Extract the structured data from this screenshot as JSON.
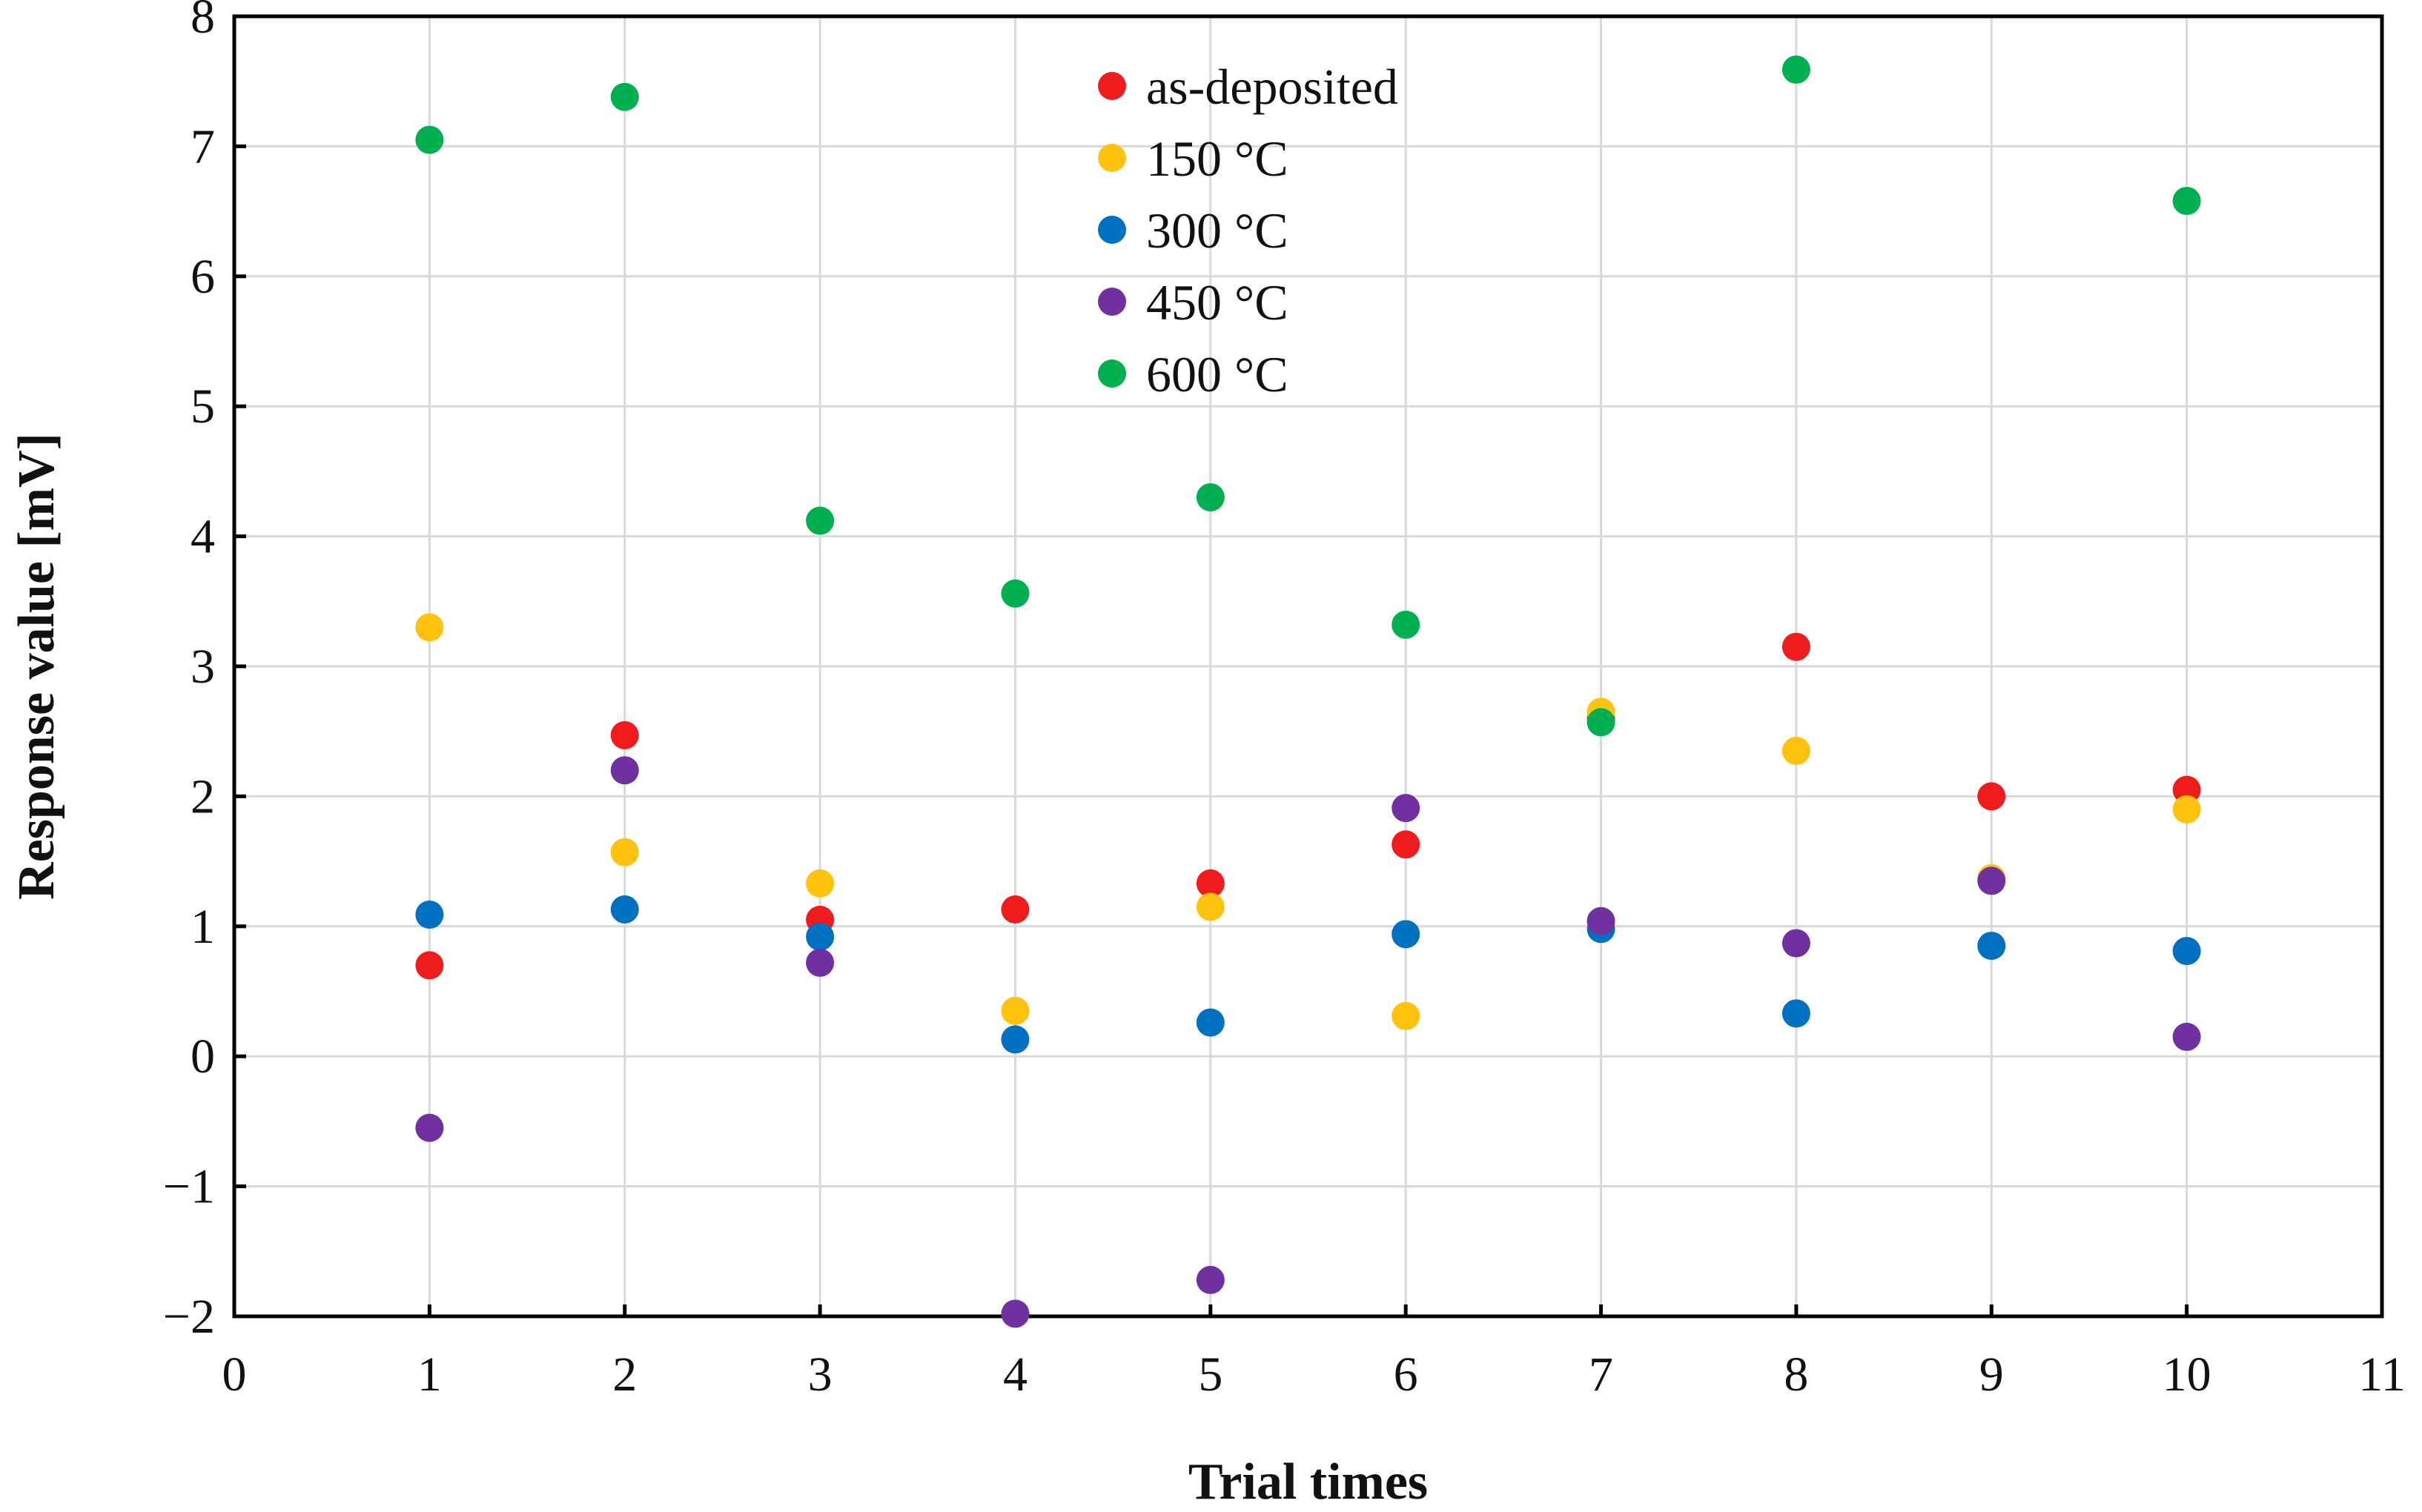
{
  "chart_data": {
    "type": "scatter",
    "title": "",
    "xlabel": "Trial times",
    "ylabel": "Response value [mV]",
    "xlim": [
      0,
      11
    ],
    "ylim": [
      -2,
      8
    ],
    "x_ticks": [
      0,
      1,
      2,
      3,
      4,
      5,
      6,
      7,
      8,
      9,
      10,
      11
    ],
    "y_ticks": [
      -2,
      -1,
      0,
      1,
      2,
      3,
      4,
      5,
      6,
      7,
      8
    ],
    "x_tick_labels": [
      "0",
      "1",
      "2",
      "3",
      "4",
      "5",
      "6",
      "7",
      "8",
      "9",
      "10",
      "11"
    ],
    "y_tick_labels": [
      "−2",
      "−1",
      "0",
      "1",
      "2",
      "3",
      "4",
      "5",
      "6",
      "7",
      "8"
    ],
    "grid": true,
    "legend_position": "top-center",
    "x": [
      1,
      2,
      3,
      4,
      5,
      6,
      7,
      8,
      9,
      10
    ],
    "series": [
      {
        "name": "as-deposited",
        "color": "#ee1c1c",
        "values": [
          0.7,
          2.47,
          1.05,
          1.13,
          1.33,
          1.63,
          2.6,
          3.15,
          2.0,
          2.05
        ]
      },
      {
        "name": "150 °C",
        "color": "#ffc20e",
        "values": [
          3.3,
          1.57,
          1.33,
          0.35,
          1.15,
          0.31,
          2.65,
          2.35,
          1.37,
          1.9
        ]
      },
      {
        "name": "300 °C",
        "color": "#0070c0",
        "values": [
          1.09,
          1.13,
          0.92,
          0.13,
          0.26,
          0.94,
          0.98,
          0.33,
          0.85,
          0.81
        ]
      },
      {
        "name": "450 °C",
        "color": "#7030a0",
        "values": [
          -0.55,
          2.2,
          0.72,
          -1.98,
          -1.72,
          1.91,
          1.04,
          0.87,
          1.35,
          0.15
        ]
      },
      {
        "name": "600 °C",
        "color": "#00b050",
        "values": [
          7.05,
          7.38,
          4.12,
          3.56,
          4.3,
          3.32,
          2.57,
          7.59,
          null,
          6.58
        ]
      }
    ]
  }
}
